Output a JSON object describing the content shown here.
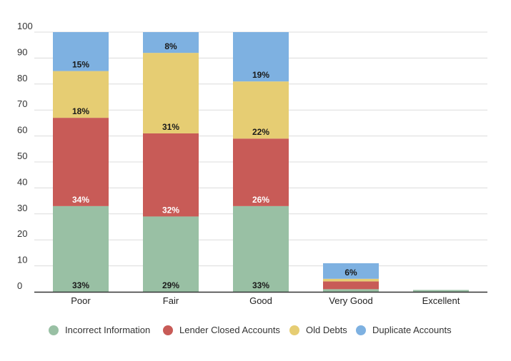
{
  "chart_data": {
    "type": "bar",
    "stacked": true,
    "categories": [
      "Poor",
      "Fair",
      "Good",
      "Very Good",
      "Excellent"
    ],
    "ylim": [
      0,
      100
    ],
    "yticks": [
      0,
      10,
      20,
      30,
      40,
      50,
      60,
      70,
      80,
      90,
      100
    ],
    "grid": true,
    "legend_position": "bottom",
    "series": [
      {
        "name": "Incorrect Information",
        "color": "#99c0a4",
        "values": [
          33,
          29,
          33,
          1,
          0.7
        ],
        "labels": [
          "33%",
          "29%",
          "33%",
          "",
          ""
        ],
        "label_color": "#1a1a1a"
      },
      {
        "name": "Lender Closed Accounts",
        "color": "#c85b57",
        "values": [
          34,
          32,
          26,
          3,
          0
        ],
        "labels": [
          "34%",
          "32%",
          "26%",
          "",
          ""
        ],
        "label_color": "#ffffff"
      },
      {
        "name": "Old Debts",
        "color": "#e6cd73",
        "values": [
          18,
          31,
          22,
          1,
          0
        ],
        "labels": [
          "18%",
          "31%",
          "22%",
          "",
          ""
        ],
        "label_color": "#1a1a1a"
      },
      {
        "name": "Duplicate Accounts",
        "color": "#7eb1e1",
        "values": [
          15,
          8,
          19,
          6,
          0
        ],
        "labels": [
          "15%",
          "8%",
          "19%",
          "6%",
          ""
        ],
        "label_color": "#1a1a1a"
      }
    ]
  }
}
